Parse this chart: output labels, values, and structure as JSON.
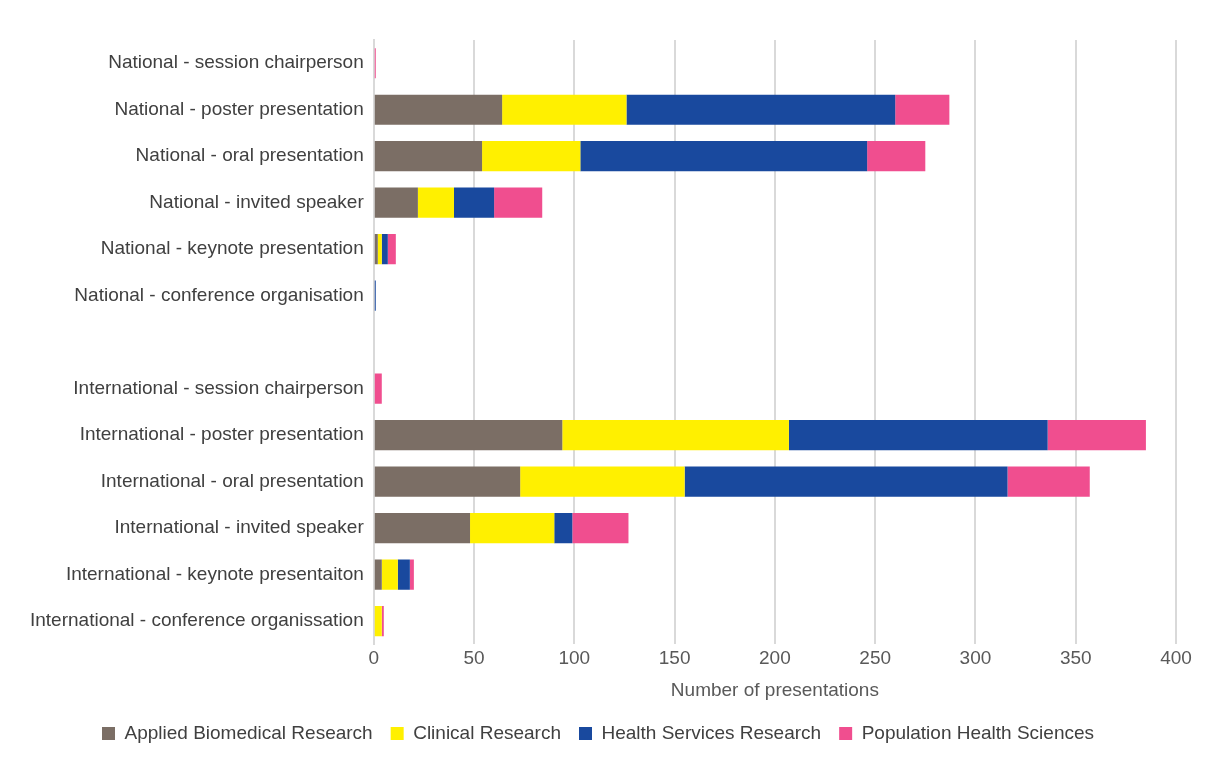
{
  "chart_data": {
    "type": "bar",
    "orientation": "horizontal",
    "stacked": true,
    "xlabel": "Number of presentations",
    "categories": [
      "National - session chairperson",
      "National - poster presentation",
      "National - oral presentation",
      "National - invited speaker",
      "National - keynote presentation",
      "National - conference organisation",
      null,
      "International - session chairperson",
      "International - poster presentation",
      "International - oral presentation",
      "International - invited speaker",
      "International - keynote presentaiton",
      "International - conference organissation"
    ],
    "series": [
      {
        "name": "Applied Biomedical Research",
        "color": "#7b6e65",
        "values": [
          0,
          64,
          54,
          22,
          2,
          0,
          null,
          0,
          94,
          73,
          48,
          4,
          0
        ]
      },
      {
        "name": "Clinical Research",
        "color": "#fff000",
        "values": [
          0,
          62,
          49,
          18,
          2,
          0,
          null,
          0,
          113,
          82,
          42,
          8,
          4
        ]
      },
      {
        "name": "Health Services Research",
        "color": "#19499e",
        "values": [
          0,
          134,
          143,
          20,
          3,
          1,
          null,
          0,
          129,
          161,
          9,
          6,
          0
        ]
      },
      {
        "name": "Population Health Sciences",
        "color": "#f04e8f",
        "values": [
          1,
          27,
          29,
          24,
          4,
          0,
          null,
          4,
          49,
          41,
          28,
          2,
          1
        ]
      }
    ],
    "xlim": [
      0,
      400
    ],
    "xticks": [
      0,
      50,
      100,
      150,
      200,
      250,
      300,
      350,
      400
    ],
    "grid": "x",
    "legend": "bottom"
  }
}
